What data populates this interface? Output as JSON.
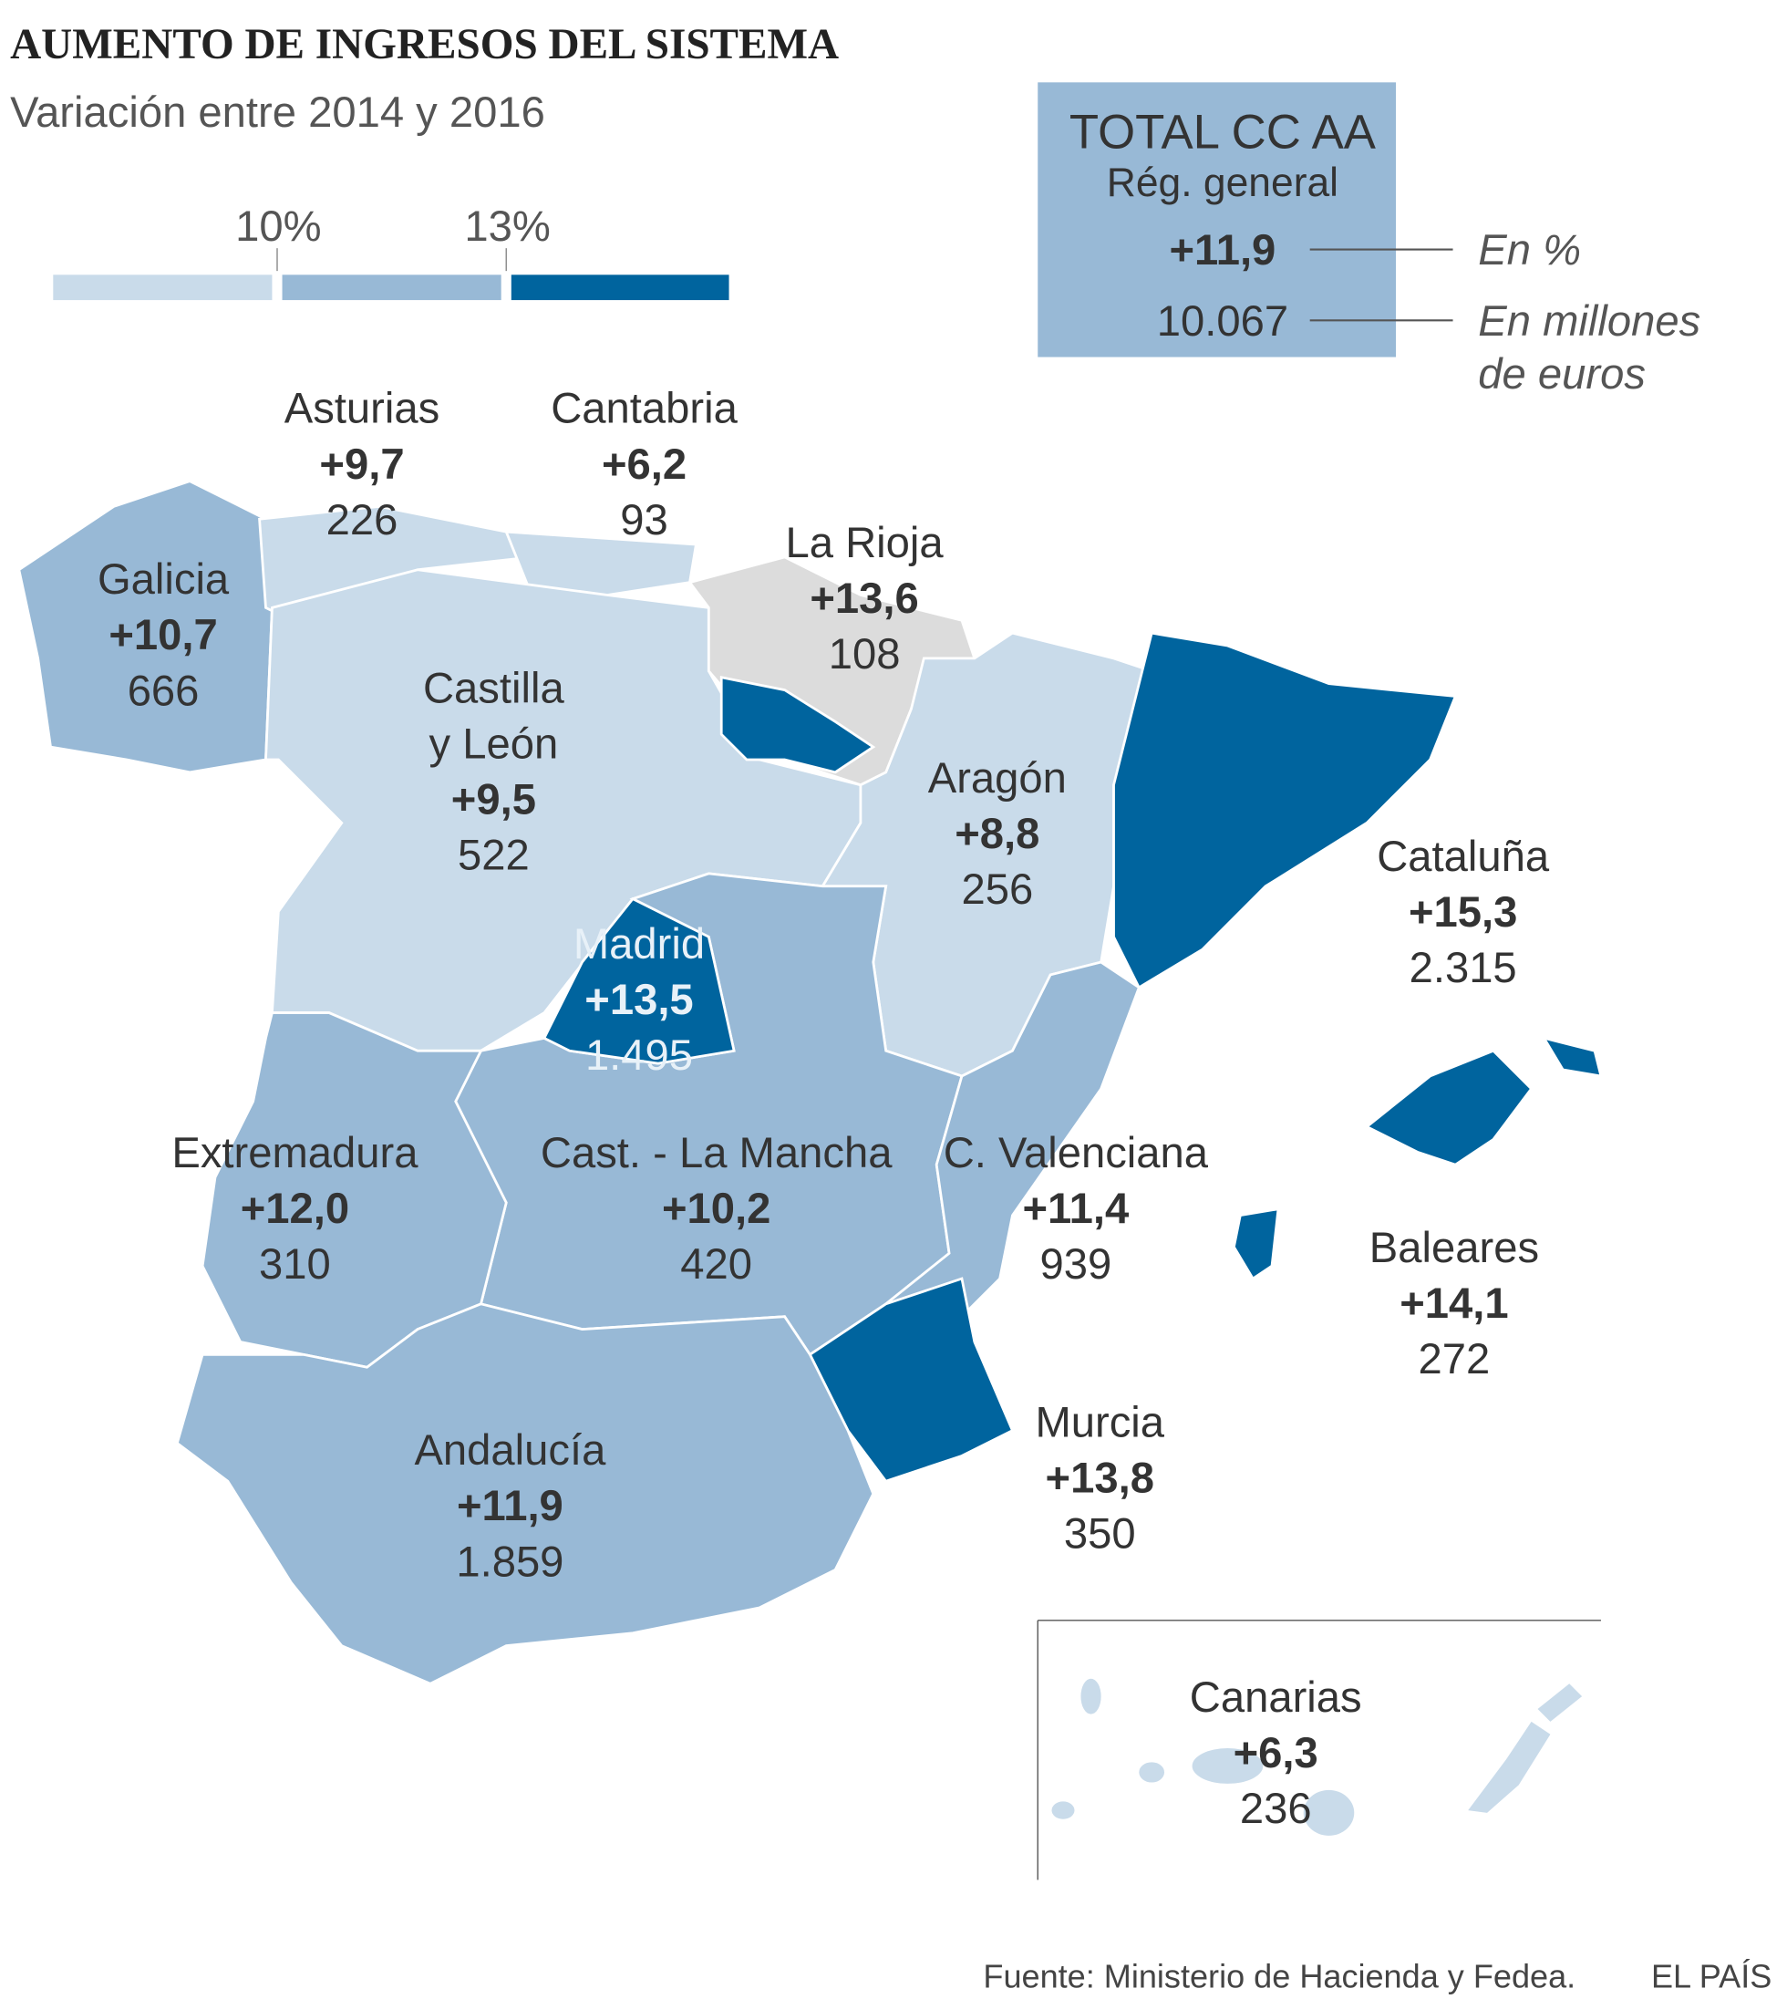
{
  "header": {
    "title": "AUMENTO DE INGRESOS DEL SISTEMA",
    "subtitle": "Variación entre 2014 y 2016"
  },
  "legend": {
    "thresholds": [
      "10%",
      "13%"
    ]
  },
  "total": {
    "title": "TOTAL CC AA",
    "subtitle": "Rég. general",
    "pct": "+11,9",
    "amount": "10.067",
    "pct_label": "En %",
    "amount_label": [
      "En millones",
      "de euros"
    ]
  },
  "regions": [
    {
      "name": [
        "Asturias"
      ],
      "pct": "+9,7",
      "amount": "226"
    },
    {
      "name": [
        "Cantabria"
      ],
      "pct": "+6,2",
      "amount": "93"
    },
    {
      "name": [
        "La Rioja"
      ],
      "pct": "+13,6",
      "amount": "108"
    },
    {
      "name": [
        "Galicia"
      ],
      "pct": "+10,7",
      "amount": "666"
    },
    {
      "name": [
        "Castilla",
        "y León"
      ],
      "pct": "+9,5",
      "amount": "522"
    },
    {
      "name": [
        "Aragón"
      ],
      "pct": "+8,8",
      "amount": "256"
    },
    {
      "name": [
        "Cataluña"
      ],
      "pct": "+15,3",
      "amount": "2.315"
    },
    {
      "name": [
        "Madrid"
      ],
      "pct": "+13,5",
      "amount": "1.495"
    },
    {
      "name": [
        "Extremadura"
      ],
      "pct": "+12,0",
      "amount": "310"
    },
    {
      "name": [
        "Cast. - La Mancha"
      ],
      "pct": "+10,2",
      "amount": "420"
    },
    {
      "name": [
        "C. Valenciana"
      ],
      "pct": "+11,4",
      "amount": "939"
    },
    {
      "name": [
        "Baleares"
      ],
      "pct": "+14,1",
      "amount": "272"
    },
    {
      "name": [
        "Murcia"
      ],
      "pct": "+13,8",
      "amount": "350"
    },
    {
      "name": [
        "Andalucía"
      ],
      "pct": "+11,9",
      "amount": "1.859"
    },
    {
      "name": [
        "Canarias"
      ],
      "pct": "+6,3",
      "amount": "236"
    }
  ],
  "footer": {
    "source": "Fuente: Ministerio de Hacienda y Fedea.",
    "brand": "EL PAÍS"
  }
}
